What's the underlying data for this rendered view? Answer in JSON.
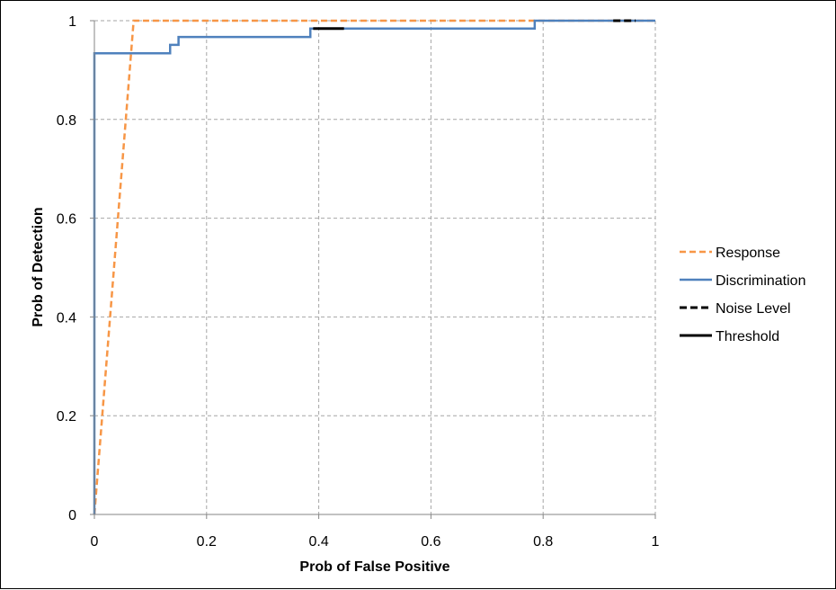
{
  "chart_data": {
    "type": "line",
    "title": "",
    "xlabel": "Prob of False Positive",
    "ylabel": "Prob of Detection",
    "xlim": [
      0,
      1
    ],
    "ylim": [
      0,
      1
    ],
    "xticks": [
      0,
      0.2,
      0.4,
      0.6,
      0.8,
      1
    ],
    "xtick_labels": [
      "0",
      "0.2",
      "0.4",
      "0.6",
      "0.8",
      "1"
    ],
    "yticks": [
      0,
      0.2,
      0.4,
      0.6,
      0.8,
      1
    ],
    "ytick_labels": [
      "0",
      "0.2",
      "0.4",
      "0.6",
      "0.8",
      "1"
    ],
    "grid": true,
    "legend_position": "right",
    "series": [
      {
        "name": "Response",
        "color": "#F79646",
        "style": "dashed",
        "x": [
          0,
          0.07,
          1
        ],
        "y": [
          0,
          1,
          1
        ]
      },
      {
        "name": "Discrimination",
        "color": "#4F81BD",
        "style": "solid",
        "x": [
          0,
          0,
          0.135,
          0.135,
          0.15,
          0.15,
          0.385,
          0.385,
          0.785,
          0.785,
          1
        ],
        "y": [
          0,
          0.934,
          0.934,
          0.951,
          0.951,
          0.967,
          0.967,
          0.984,
          0.984,
          1,
          1
        ]
      },
      {
        "name": "Noise Level",
        "color": "#000000",
        "style": "dashed",
        "x": [
          0.925,
          0.965
        ],
        "y": [
          1,
          1
        ]
      },
      {
        "name": "Threshold",
        "color": "#000000",
        "style": "solid",
        "x": [
          0.39,
          0.445
        ],
        "y": [
          0.984,
          0.984
        ]
      }
    ]
  }
}
